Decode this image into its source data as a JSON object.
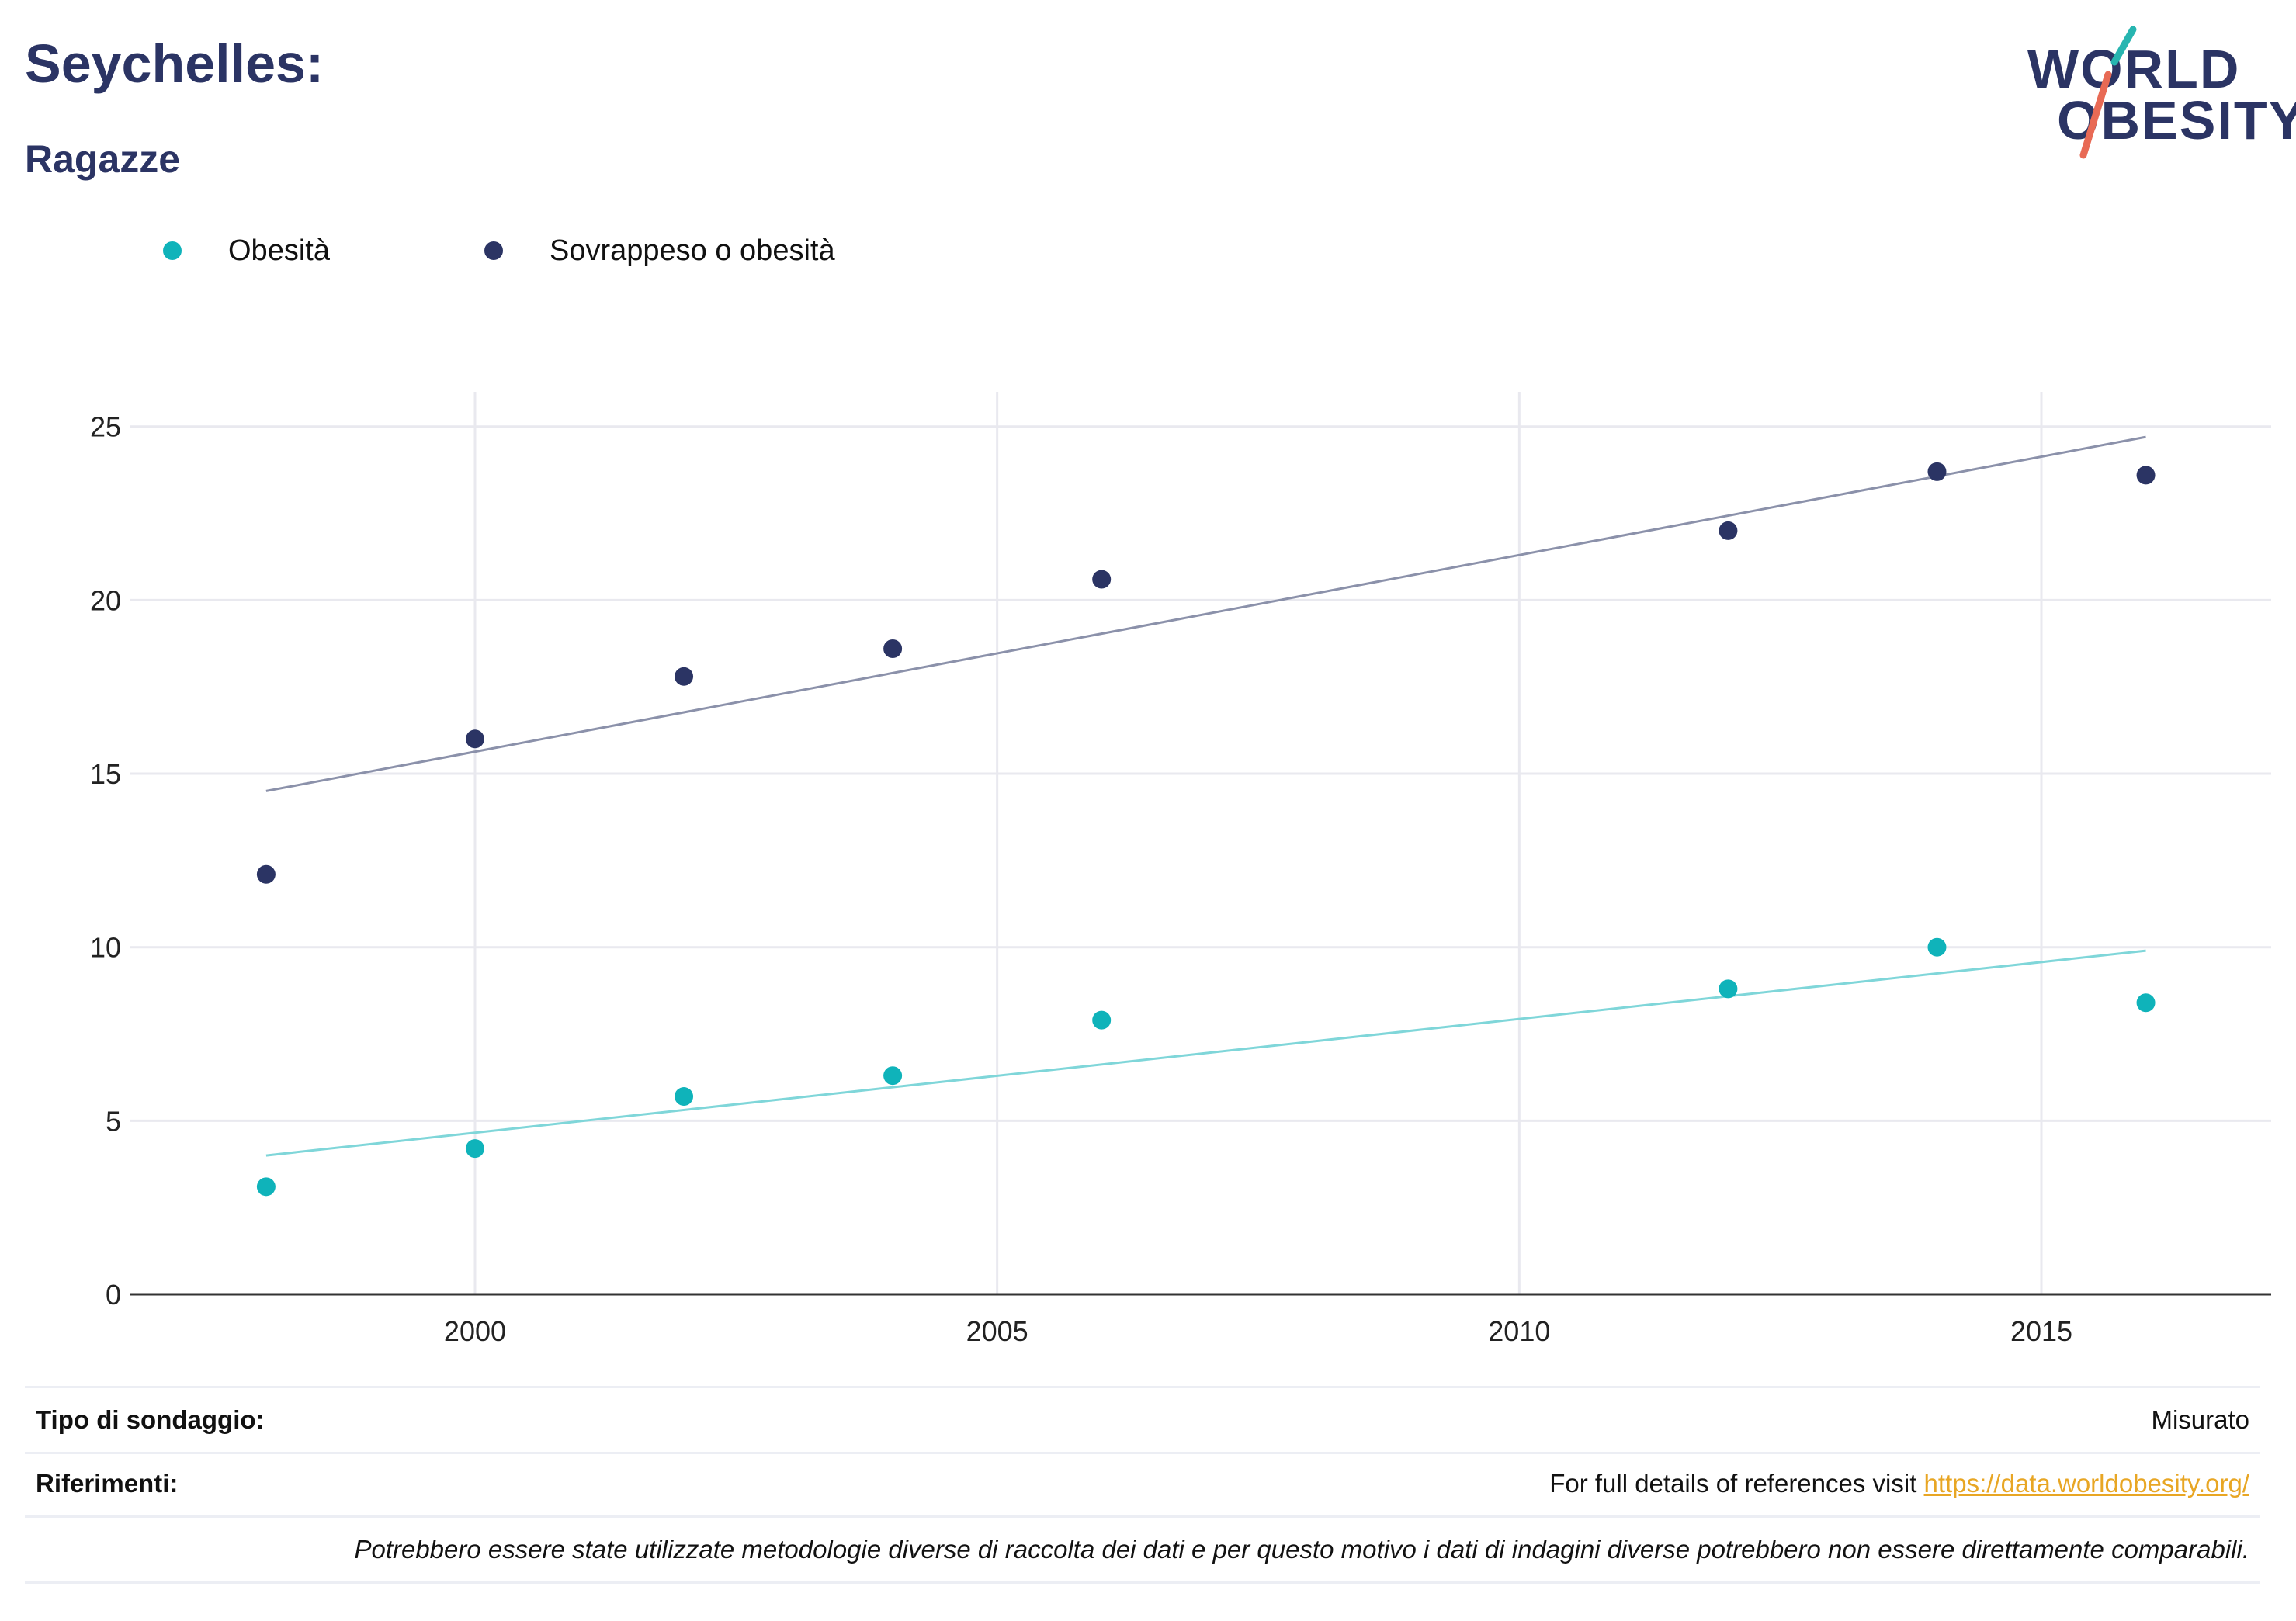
{
  "header": {
    "title": "Seychelles:",
    "subtitle": "Ragazze"
  },
  "logo": {
    "line1": "WORLD",
    "line2": "OBESITY",
    "colors": {
      "text": "#2b3464",
      "slash_teal": "#27b5b0",
      "slash_red": "#e86a55"
    }
  },
  "legend": [
    {
      "label": "Obesità",
      "color": "#0fb3ba"
    },
    {
      "label": "Sovrappeso o obesità",
      "color": "#2b3464"
    }
  ],
  "chart_data": {
    "type": "scatter",
    "x_ticks": [
      "2000",
      "2005",
      "2010",
      "2015"
    ],
    "y_ticks": [
      "0",
      "5",
      "10",
      "15",
      "20",
      "25"
    ],
    "xlim": [
      1996.7,
      2017.2
    ],
    "ylim": [
      0,
      26
    ],
    "grid": true,
    "legend_position": "top-left",
    "series": [
      {
        "name": "Obesità",
        "color": "#0fb3ba",
        "trend_color": "#7fd6d9",
        "points": [
          {
            "x": 1998,
            "y": 3.1
          },
          {
            "x": 2000,
            "y": 4.2
          },
          {
            "x": 2002,
            "y": 5.7
          },
          {
            "x": 2004,
            "y": 6.3
          },
          {
            "x": 2006,
            "y": 7.9
          },
          {
            "x": 2012,
            "y": 8.8
          },
          {
            "x": 2014,
            "y": 10.0
          },
          {
            "x": 2016,
            "y": 8.4
          }
        ],
        "trendline": [
          {
            "x": 1998,
            "y": 4.0
          },
          {
            "x": 2016,
            "y": 9.9
          }
        ]
      },
      {
        "name": "Sovrappeso o obesità",
        "color": "#2b3464",
        "trend_color": "#8b91aa",
        "points": [
          {
            "x": 1998,
            "y": 12.1
          },
          {
            "x": 2000,
            "y": 16.0
          },
          {
            "x": 2002,
            "y": 17.8
          },
          {
            "x": 2004,
            "y": 18.6
          },
          {
            "x": 2006,
            "y": 20.6
          },
          {
            "x": 2012,
            "y": 22.0
          },
          {
            "x": 2014,
            "y": 23.7
          },
          {
            "x": 2016,
            "y": 23.6
          }
        ],
        "trendline": [
          {
            "x": 1998,
            "y": 14.5
          },
          {
            "x": 2016,
            "y": 24.7
          }
        ]
      }
    ]
  },
  "footer": {
    "survey_label": "Tipo di sondaggio:",
    "survey_value": "Misurato",
    "references_label": "Riferimenti:",
    "references_text": "For full details of references visit ",
    "references_link": "https://data.worldobesity.org/",
    "note": "Potrebbero essere state utilizzate metodologie diverse di raccolta dei dati e per questo motivo i dati di indagini diverse potrebbero non essere direttamente comparabili."
  }
}
